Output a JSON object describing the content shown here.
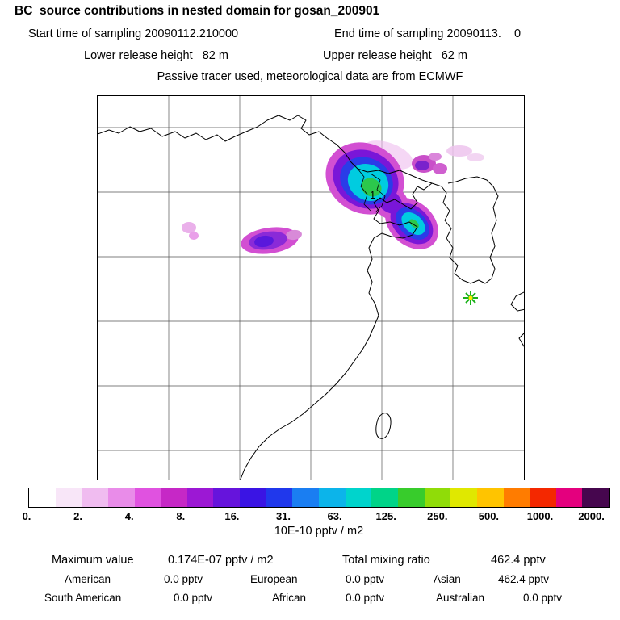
{
  "header": {
    "title": "BC  source contributions in nested domain for gosan_200901",
    "start_time": "Start time of sampling 20090112.210000",
    "end_time": "End time of sampling 20090113.    0",
    "lower_release": "Lower release height   82 m",
    "upper_release": "Upper release height   62 m",
    "tracer_line": "Passive tracer used, meteorological data are from ECMWF"
  },
  "map": {
    "plume_label": "1"
  },
  "colorbar": {
    "tick_labels": [
      "0.",
      "2.",
      "4.",
      "8.",
      "16.",
      "31.",
      "63.",
      "125.",
      "250.",
      "500.",
      "1000.",
      "2000."
    ],
    "unit_label": "10E-10 pptv / m2",
    "colors": [
      "#ffffff",
      "#f8e6f8",
      "#f0bcf0",
      "#e98ce9",
      "#e052e0",
      "#c628c6",
      "#9c18d4",
      "#6614dc",
      "#3a14e4",
      "#2038ec",
      "#1a7ef2",
      "#0cb4ea",
      "#00d4cc",
      "#00d488",
      "#38cc2c",
      "#90dc08",
      "#e0e800",
      "#ffc400",
      "#ff7c00",
      "#f42800",
      "#e4007e",
      "#46064e"
    ]
  },
  "stats": {
    "maximum_label": "Maximum value",
    "maximum_value": "0.174E-07 pptv / m2",
    "total_label": "Total mixing ratio",
    "total_value": "462.4 pptv",
    "regions": [
      {
        "label": "American",
        "value": "0.0 pptv"
      },
      {
        "label": "European",
        "value": "0.0 pptv"
      },
      {
        "label": "Asian",
        "value": "462.4 pptv"
      },
      {
        "label": "South American",
        "value": "0.0 pptv"
      },
      {
        "label": "African",
        "value": "0.0 pptv"
      },
      {
        "label": "Australian",
        "value": "0.0 pptv"
      }
    ]
  },
  "chart_data": {
    "type": "heatmap",
    "title": "BC source contributions in nested domain for gosan_200901",
    "legend": {
      "unit": "10E-10 pptv / m2",
      "levels": [
        0,
        2,
        4,
        8,
        16,
        31,
        63,
        125,
        250,
        500,
        1000,
        2000
      ],
      "position": "bottom-horizontal"
    },
    "sampling": {
      "start": "20090112.210000",
      "end": "20090113.    0"
    },
    "release_heights_m": {
      "lower": 82,
      "upper": 62
    },
    "tracer": "Passive tracer used, meteorological data are from ECMWF",
    "maximum_value": "0.174E-07 pptv / m2",
    "total_mixing_ratio_pptv": 462.4,
    "continent_contributions_pptv": {
      "American": 0.0,
      "European": 0.0,
      "Asian": 462.4,
      "South American": 0.0,
      "African": 0.0,
      "Australian": 0.0
    },
    "map_features": {
      "grid": "lat-lon graticule, ~6x6 cells",
      "coastlines": "East Asia: NE China, Bohai Sea, Korean peninsula, China coast, Taiwan",
      "main_plume": "elongated NE-SW plume over NE China / Bohai with green core (~125-250 level), cyan, blue, purple, magenta halo; labeled 1",
      "secondary_blobs": "purple blob inland central China, faint magenta blob far west, magenta/purple patches NE of plume",
      "receptor_marker": "green/yellow asterisk south of Korean peninsula (Gosan site)"
    },
    "annotations": [
      {
        "label": "1",
        "meaning": "plume maximum location"
      }
    ]
  }
}
